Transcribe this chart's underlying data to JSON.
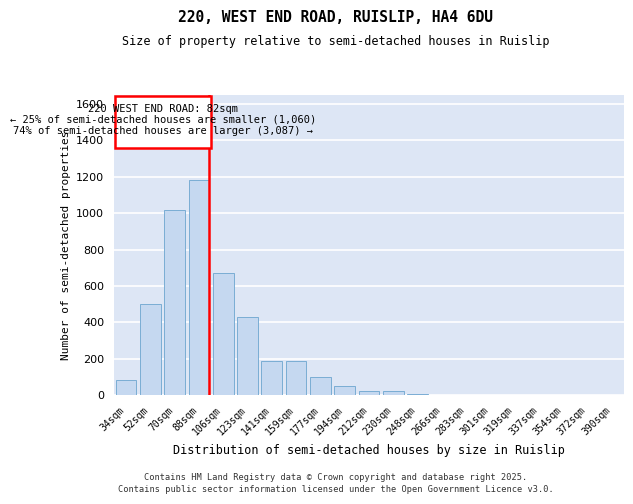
{
  "title1": "220, WEST END ROAD, RUISLIP, HA4 6DU",
  "title2": "Size of property relative to semi-detached houses in Ruislip",
  "xlabel": "Distribution of semi-detached houses by size in Ruislip",
  "ylabel": "Number of semi-detached properties",
  "bar_color": "#c5d8f0",
  "bar_edge_color": "#7aadd4",
  "background_color": "#dde6f5",
  "grid_color": "#ffffff",
  "categories": [
    "34sqm",
    "52sqm",
    "70sqm",
    "88sqm",
    "106sqm",
    "123sqm",
    "141sqm",
    "159sqm",
    "177sqm",
    "194sqm",
    "212sqm",
    "230sqm",
    "248sqm",
    "266sqm",
    "283sqm",
    "301sqm",
    "319sqm",
    "337sqm",
    "354sqm",
    "372sqm",
    "390sqm"
  ],
  "values": [
    80,
    500,
    1020,
    1180,
    670,
    430,
    185,
    185,
    100,
    50,
    20,
    20,
    5,
    0,
    0,
    0,
    0,
    0,
    0,
    0,
    0
  ],
  "red_line_index": 3,
  "annotation_title": "220 WEST END ROAD: 82sqm",
  "annotation_line1": "← 25% of semi-detached houses are smaller (1,060)",
  "annotation_line2": "74% of semi-detached houses are larger (3,087) →",
  "ylim": [
    0,
    1650
  ],
  "yticks": [
    0,
    200,
    400,
    600,
    800,
    1000,
    1200,
    1400,
    1600
  ],
  "footer1": "Contains HM Land Registry data © Crown copyright and database right 2025.",
  "footer2": "Contains public sector information licensed under the Open Government Licence v3.0."
}
